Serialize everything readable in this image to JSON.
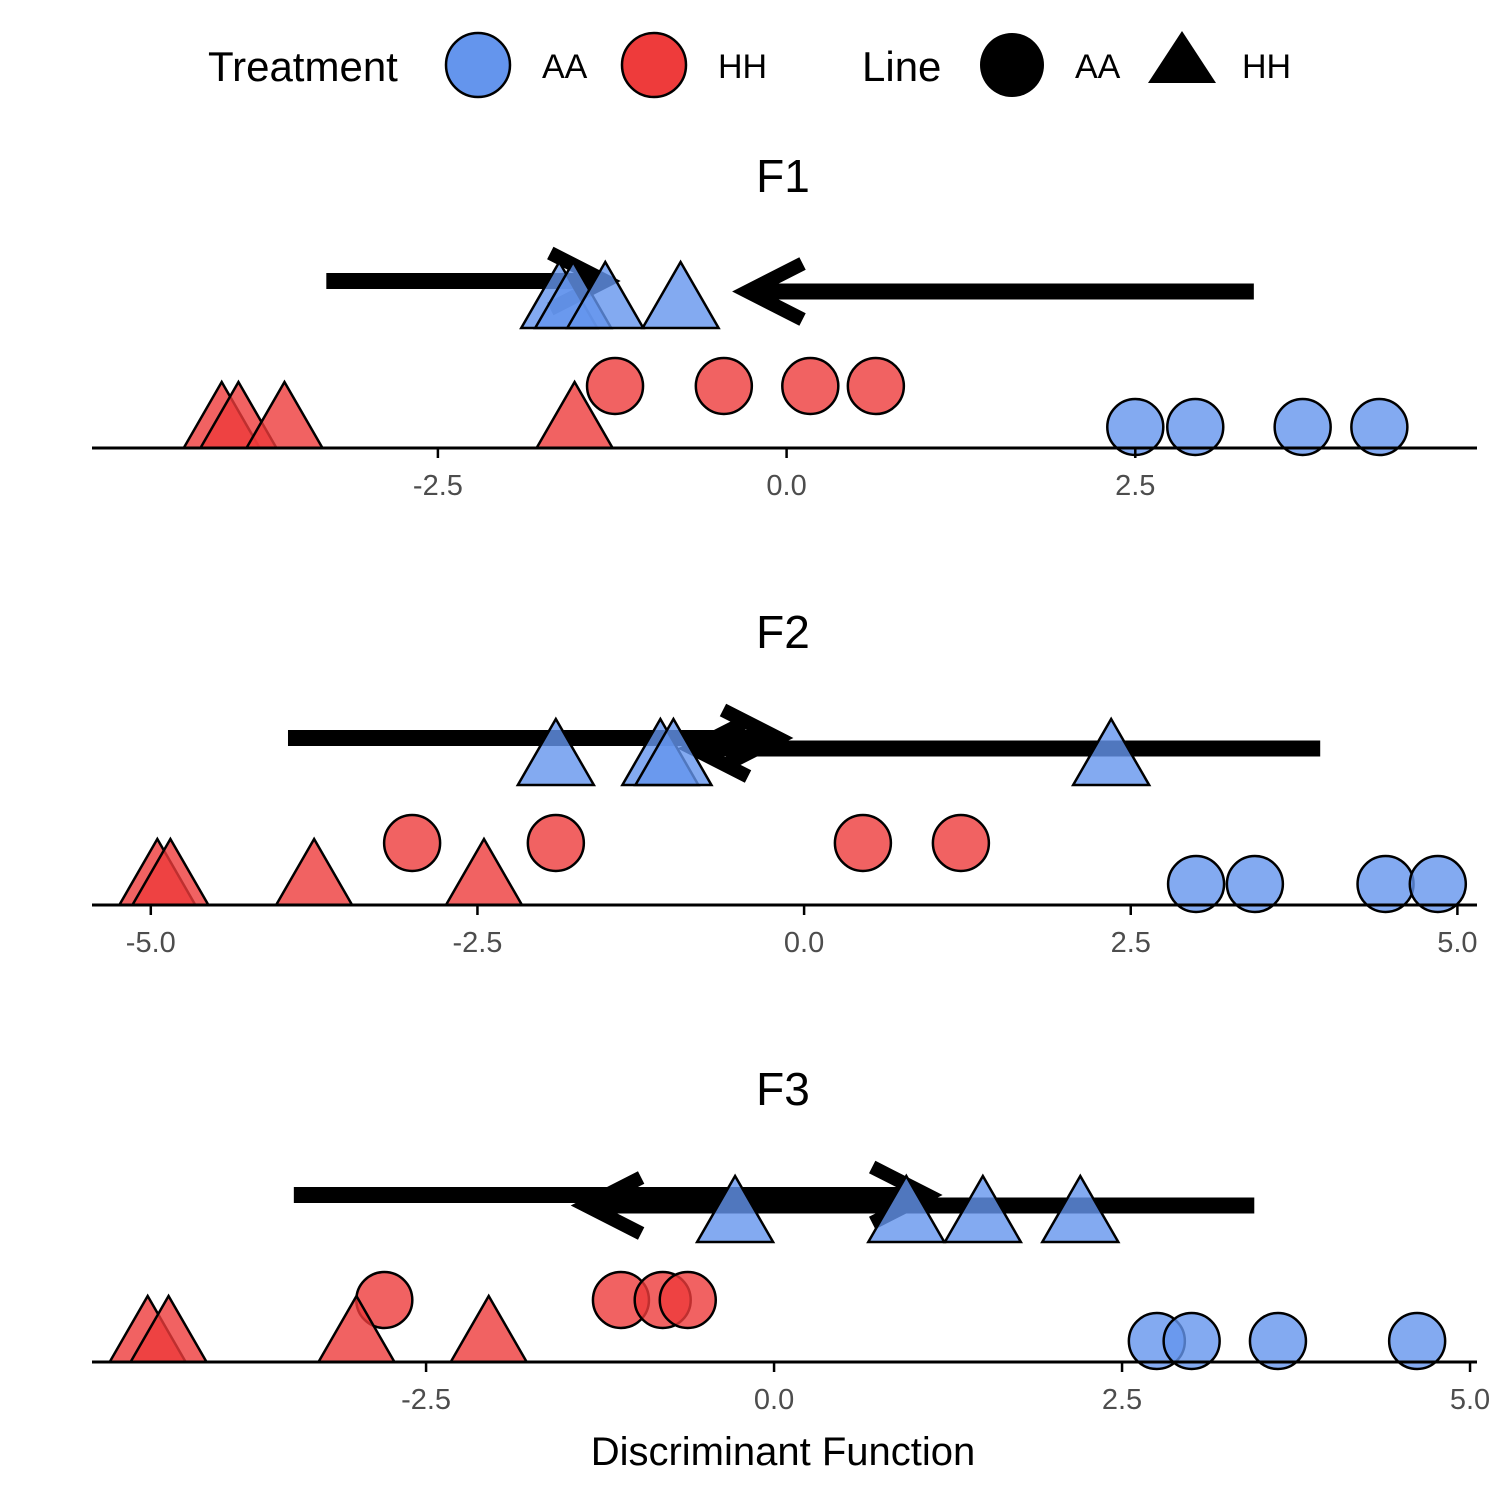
{
  "legend": {
    "treatment_title": "Treatment",
    "treatment_items": [
      "AA",
      "HH"
    ],
    "line_title": "Line",
    "line_items": [
      "AA",
      "HH"
    ]
  },
  "colors": {
    "AA": "#6495ED",
    "HH": "#EE3B3B"
  },
  "chart_data": {
    "type": "scatter",
    "xlabel": "Discriminant Function",
    "panels": [
      {
        "title": "F1",
        "xlim": [
          -4.98,
          4.95
        ],
        "ticks": [
          "-2.5",
          "0.0",
          "2.5"
        ],
        "tick_values": [
          -2.5,
          0.0,
          2.5
        ],
        "arrows": [
          {
            "from": -3.3,
            "to": -1.3,
            "level": 2.1
          },
          {
            "from": 3.35,
            "to": -0.28,
            "level": 1.95
          }
        ],
        "points": [
          {
            "x": 2.5,
            "treatment": "AA",
            "line": "AA",
            "level": 0
          },
          {
            "x": 2.93,
            "treatment": "AA",
            "line": "AA",
            "level": 0
          },
          {
            "x": 3.7,
            "treatment": "AA",
            "line": "AA",
            "level": 0
          },
          {
            "x": 4.25,
            "treatment": "AA",
            "line": "AA",
            "level": 0
          },
          {
            "x": -1.63,
            "treatment": "AA",
            "line": "HH",
            "level": 1
          },
          {
            "x": -1.53,
            "treatment": "AA",
            "line": "HH",
            "level": 1
          },
          {
            "x": -1.3,
            "treatment": "AA",
            "line": "HH",
            "level": 1
          },
          {
            "x": -0.76,
            "treatment": "AA",
            "line": "HH",
            "level": 1
          },
          {
            "x": -1.23,
            "treatment": "HH",
            "line": "AA",
            "level": 0.5
          },
          {
            "x": -0.45,
            "treatment": "HH",
            "line": "AA",
            "level": 0.5
          },
          {
            "x": 0.17,
            "treatment": "HH",
            "line": "AA",
            "level": 0.5
          },
          {
            "x": 0.64,
            "treatment": "HH",
            "line": "AA",
            "level": 0.5
          },
          {
            "x": -4.05,
            "treatment": "HH",
            "line": "HH",
            "level": 0
          },
          {
            "x": -3.93,
            "treatment": "HH",
            "line": "HH",
            "level": 0
          },
          {
            "x": -3.6,
            "treatment": "HH",
            "line": "HH",
            "level": 0
          },
          {
            "x": -1.52,
            "treatment": "HH",
            "line": "HH",
            "level": 0
          }
        ]
      },
      {
        "title": "F2",
        "xlim": [
          -5.45,
          5.15
        ],
        "ticks": [
          "-5.0",
          "-2.5",
          "0.0",
          "2.5",
          "5.0"
        ],
        "tick_values": [
          -5.0,
          -2.5,
          0.0,
          2.5,
          5.0
        ],
        "arrows": [
          {
            "from": -3.95,
            "to": -0.2,
            "level": 2.1
          },
          {
            "from": 3.95,
            "to": -0.85,
            "level": 1.95
          }
        ],
        "points": [
          {
            "x": 3.0,
            "treatment": "AA",
            "line": "AA",
            "level": 0
          },
          {
            "x": 3.45,
            "treatment": "AA",
            "line": "AA",
            "level": 0
          },
          {
            "x": 4.45,
            "treatment": "AA",
            "line": "AA",
            "level": 0
          },
          {
            "x": 4.85,
            "treatment": "AA",
            "line": "AA",
            "level": 0
          },
          {
            "x": -1.9,
            "treatment": "AA",
            "line": "HH",
            "level": 1
          },
          {
            "x": -1.1,
            "treatment": "AA",
            "line": "HH",
            "level": 1
          },
          {
            "x": -1.0,
            "treatment": "AA",
            "line": "HH",
            "level": 1
          },
          {
            "x": 2.35,
            "treatment": "AA",
            "line": "HH",
            "level": 1
          },
          {
            "x": -3.0,
            "treatment": "HH",
            "line": "AA",
            "level": 0.5
          },
          {
            "x": -1.9,
            "treatment": "HH",
            "line": "AA",
            "level": 0.5
          },
          {
            "x": 0.45,
            "treatment": "HH",
            "line": "AA",
            "level": 0.5
          },
          {
            "x": 1.2,
            "treatment": "HH",
            "line": "AA",
            "level": 0.5
          },
          {
            "x": -4.95,
            "treatment": "HH",
            "line": "HH",
            "level": 0
          },
          {
            "x": -4.85,
            "treatment": "HH",
            "line": "HH",
            "level": 0
          },
          {
            "x": -3.75,
            "treatment": "HH",
            "line": "HH",
            "level": 0
          },
          {
            "x": -2.45,
            "treatment": "HH",
            "line": "HH",
            "level": 0
          }
        ]
      },
      {
        "title": "F3",
        "xlim": [
          -4.9,
          5.05
        ],
        "ticks": [
          "-2.5",
          "0.0",
          "2.5",
          "5.0"
        ],
        "tick_values": [
          -2.5,
          0.0,
          2.5,
          5.0
        ],
        "arrows": [
          {
            "from": -3.45,
            "to": 1.1,
            "level": 2.1
          },
          {
            "from": 3.45,
            "to": -1.35,
            "level": 1.95
          }
        ],
        "points": [
          {
            "x": 2.75,
            "treatment": "AA",
            "line": "AA",
            "level": 0
          },
          {
            "x": 3.0,
            "treatment": "AA",
            "line": "AA",
            "level": 0
          },
          {
            "x": 3.62,
            "treatment": "AA",
            "line": "AA",
            "level": 0
          },
          {
            "x": 4.62,
            "treatment": "AA",
            "line": "AA",
            "level": 0
          },
          {
            "x": -0.28,
            "treatment": "AA",
            "line": "HH",
            "level": 1
          },
          {
            "x": 0.95,
            "treatment": "AA",
            "line": "HH",
            "level": 1
          },
          {
            "x": 1.5,
            "treatment": "AA",
            "line": "HH",
            "level": 1
          },
          {
            "x": 2.2,
            "treatment": "AA",
            "line": "HH",
            "level": 1
          },
          {
            "x": -2.8,
            "treatment": "HH",
            "line": "AA",
            "level": 0.5
          },
          {
            "x": -1.1,
            "treatment": "HH",
            "line": "AA",
            "level": 0.5
          },
          {
            "x": -0.8,
            "treatment": "HH",
            "line": "AA",
            "level": 0.5
          },
          {
            "x": -0.62,
            "treatment": "HH",
            "line": "AA",
            "level": 0.5
          },
          {
            "x": -4.5,
            "treatment": "HH",
            "line": "HH",
            "level": 0
          },
          {
            "x": -4.35,
            "treatment": "HH",
            "line": "HH",
            "level": 0
          },
          {
            "x": -3.0,
            "treatment": "HH",
            "line": "HH",
            "level": 0
          },
          {
            "x": -2.05,
            "treatment": "HH",
            "line": "HH",
            "level": 0
          }
        ]
      }
    ]
  }
}
